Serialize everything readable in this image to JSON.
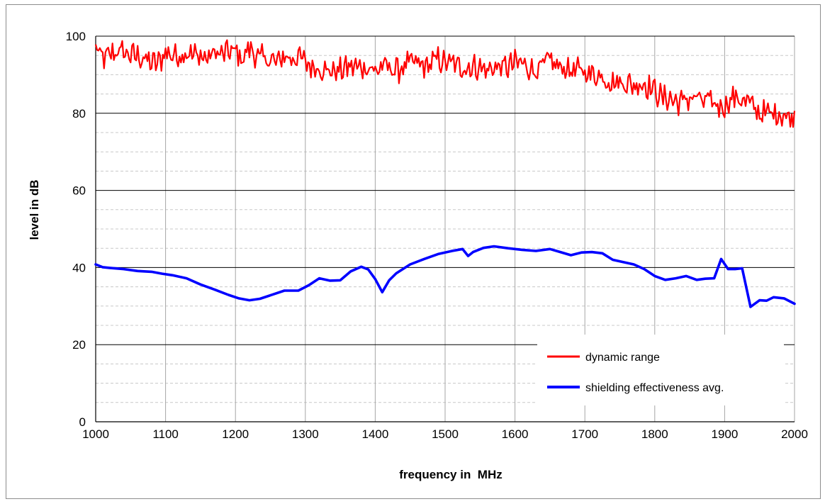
{
  "chart_data": {
    "type": "line",
    "title": "",
    "xlabel": "frequency in  MHz",
    "ylabel": "level in dB",
    "xlim": [
      1000,
      2000
    ],
    "ylim": [
      0,
      100
    ],
    "x_ticks": [
      "1000",
      "1100",
      "1200",
      "1300",
      "1400",
      "1500",
      "1600",
      "1700",
      "1800",
      "1900",
      "2000"
    ],
    "y_ticks": [
      "0",
      "20",
      "40",
      "60",
      "80",
      "100"
    ],
    "grid": {
      "major": true,
      "minor_y_dashed": true
    },
    "legend_position": "bottom-right",
    "series": [
      {
        "name": "dynamic range",
        "color": "#ff0000",
        "x": [
          1000,
          1010,
          1020,
          1030,
          1040,
          1050,
          1060,
          1070,
          1080,
          1090,
          1100,
          1110,
          1120,
          1130,
          1140,
          1150,
          1160,
          1170,
          1180,
          1190,
          1200,
          1210,
          1220,
          1230,
          1240,
          1250,
          1260,
          1270,
          1280,
          1290,
          1300,
          1310,
          1320,
          1330,
          1340,
          1350,
          1360,
          1370,
          1380,
          1390,
          1400,
          1410,
          1420,
          1430,
          1440,
          1450,
          1460,
          1470,
          1480,
          1490,
          1500,
          1510,
          1520,
          1530,
          1540,
          1550,
          1560,
          1570,
          1580,
          1590,
          1600,
          1610,
          1620,
          1630,
          1640,
          1650,
          1660,
          1670,
          1680,
          1690,
          1700,
          1710,
          1720,
          1730,
          1740,
          1750,
          1760,
          1770,
          1780,
          1790,
          1800,
          1810,
          1820,
          1830,
          1840,
          1850,
          1860,
          1870,
          1880,
          1890,
          1900,
          1910,
          1920,
          1930,
          1940,
          1950,
          1960,
          1970,
          1980,
          1990,
          2000
        ],
        "values": [
          97,
          94,
          95,
          96,
          96,
          95,
          95,
          94,
          93,
          93,
          96,
          95,
          95,
          96,
          95,
          95,
          94,
          96,
          95,
          96,
          96,
          94,
          97,
          95,
          94,
          94,
          93,
          95,
          94,
          95,
          93,
          92,
          92,
          91,
          91,
          91,
          92,
          92,
          92,
          92,
          91,
          92,
          92,
          91,
          92,
          93,
          93,
          92,
          93,
          94,
          93,
          93,
          92,
          92,
          92,
          92,
          91,
          92,
          92,
          92,
          93,
          93,
          92,
          91,
          92,
          94,
          92,
          92,
          91,
          91,
          91,
          90,
          90,
          89,
          88,
          88,
          88,
          87,
          88,
          87,
          86,
          84,
          84,
          83,
          83,
          84,
          84,
          83,
          83,
          82,
          82,
          84,
          84,
          83,
          82,
          80,
          80,
          80,
          80,
          79,
          79
        ]
      },
      {
        "name": "shielding effectiveness avg.",
        "color": "#0000ff",
        "x": [
          1000,
          1010,
          1020,
          1040,
          1060,
          1080,
          1095,
          1110,
          1130,
          1150,
          1170,
          1190,
          1205,
          1220,
          1235,
          1250,
          1270,
          1290,
          1305,
          1320,
          1335,
          1350,
          1365,
          1380,
          1390,
          1400,
          1410,
          1420,
          1430,
          1450,
          1470,
          1490,
          1510,
          1525,
          1533,
          1540,
          1555,
          1570,
          1590,
          1610,
          1630,
          1650,
          1665,
          1680,
          1695,
          1710,
          1725,
          1740,
          1755,
          1770,
          1785,
          1800,
          1815,
          1830,
          1845,
          1860,
          1872,
          1885,
          1895,
          1905,
          1915,
          1925,
          1937,
          1950,
          1960,
          1970,
          1985,
          2000
        ],
        "values": [
          40.8,
          40.1,
          39.9,
          39.6,
          39.1,
          38.9,
          38.4,
          38.0,
          37.2,
          35.6,
          34.3,
          32.9,
          32.0,
          31.5,
          31.9,
          32.8,
          34.0,
          34.0,
          35.4,
          37.2,
          36.6,
          36.7,
          39.0,
          40.2,
          39.5,
          37.0,
          33.6,
          36.7,
          38.5,
          40.8,
          42.2,
          43.5,
          44.3,
          44.8,
          43.0,
          44.0,
          45.1,
          45.5,
          45.0,
          44.6,
          44.3,
          44.8,
          44.0,
          43.2,
          43.9,
          44.0,
          43.7,
          42.0,
          41.4,
          40.8,
          39.6,
          37.8,
          36.8,
          37.2,
          37.8,
          36.8,
          37.1,
          37.2,
          42.2,
          39.6,
          39.6,
          39.8,
          29.8,
          31.5,
          31.4,
          32.3,
          32.0,
          30.6
        ]
      }
    ]
  }
}
